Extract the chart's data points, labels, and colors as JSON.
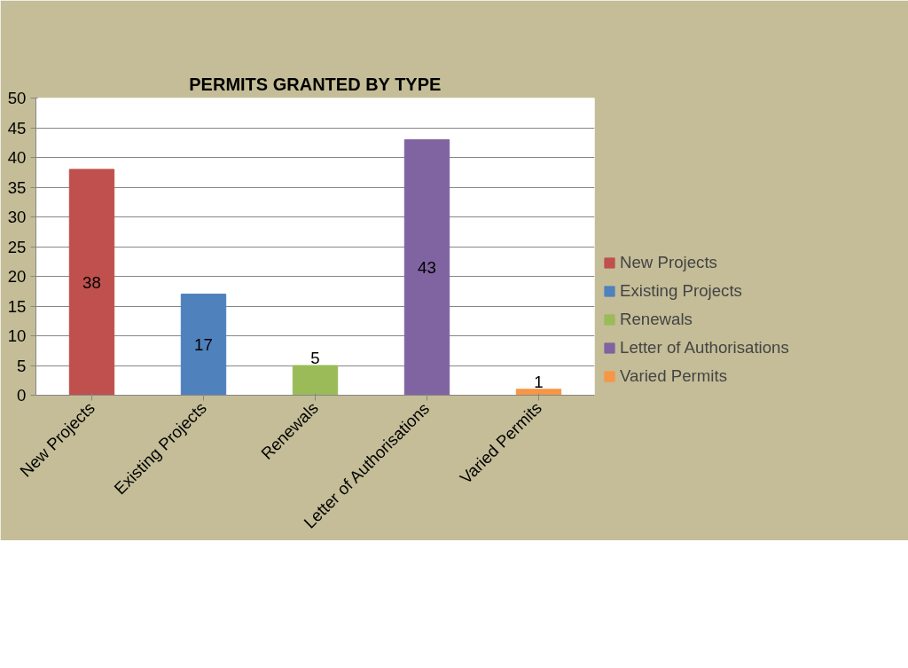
{
  "chart_data": {
    "type": "bar",
    "title": "PERMITS GRANTED BY TYPE",
    "categories": [
      "New Projects",
      "Existing Projects",
      "Renewals",
      "Letter of Authorisations",
      "Varied Permits"
    ],
    "series": [
      {
        "name": "New Projects",
        "color": "#c0504d",
        "values": [
          38,
          null,
          null,
          null,
          null
        ]
      },
      {
        "name": "Existing Projects",
        "color": "#4f81bd",
        "values": [
          null,
          17,
          null,
          null,
          null
        ]
      },
      {
        "name": "Renewals",
        "color": "#9bbb59",
        "values": [
          null,
          null,
          5,
          null,
          null
        ]
      },
      {
        "name": "Letter of Authorisations",
        "color": "#8064a2",
        "values": [
          null,
          null,
          null,
          43,
          null
        ]
      },
      {
        "name": "Varied Permits",
        "color": "#f79646",
        "values": [
          null,
          null,
          null,
          null,
          1
        ]
      }
    ],
    "ylim": [
      0,
      50
    ],
    "yticks": [
      0,
      5,
      10,
      15,
      20,
      25,
      30,
      35,
      40,
      45,
      50
    ],
    "grid": "y",
    "legend": "right",
    "data_labels": true
  }
}
